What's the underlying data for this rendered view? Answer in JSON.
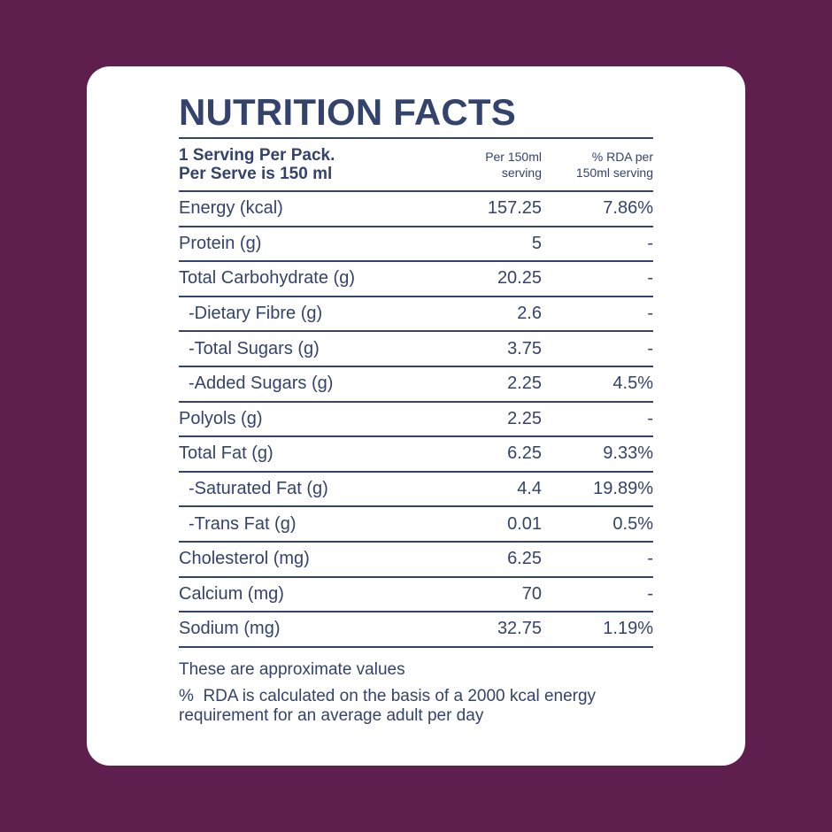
{
  "title": "NUTRITION FACTS",
  "header": {
    "serving_line1": "1 Serving Per Pack.",
    "serving_line2": "Per Serve is 150 ml",
    "per_col_line1": "Per 150ml",
    "per_col_line2": "serving",
    "rda_col_line1": "% RDA per",
    "rda_col_line2": "150ml serving"
  },
  "rows": [
    {
      "name": "Energy (kcal)",
      "value": "157.25",
      "rda": "7.86%",
      "sub": false
    },
    {
      "name": "Protein (g)",
      "value": "5",
      "rda": "-",
      "sub": false
    },
    {
      "name": "Total Carbohydrate (g)",
      "value": "20.25",
      "rda": "-",
      "sub": false
    },
    {
      "name": "-Dietary Fibre (g)",
      "value": "2.6",
      "rda": "-",
      "sub": true
    },
    {
      "name": "-Total Sugars (g)",
      "value": "3.75",
      "rda": "-",
      "sub": true
    },
    {
      "name": "-Added Sugars (g)",
      "value": "2.25",
      "rda": "4.5%",
      "sub": true
    },
    {
      "name": "Polyols (g)",
      "value": "2.25",
      "rda": "-",
      "sub": false
    },
    {
      "name": "Total Fat (g)",
      "value": "6.25",
      "rda": "9.33%",
      "sub": false
    },
    {
      "name": "-Saturated Fat (g)",
      "value": "4.4",
      "rda": "19.89%",
      "sub": true
    },
    {
      "name": "-Trans Fat (g)",
      "value": "0.01",
      "rda": "0.5%",
      "sub": true
    },
    {
      "name": "Cholesterol (mg)",
      "value": "6.25",
      "rda": "-",
      "sub": false
    },
    {
      "name": "Calcium (mg)",
      "value": "70",
      "rda": "-",
      "sub": false
    },
    {
      "name": "Sodium (mg)",
      "value": "32.75",
      "rda": "1.19%",
      "sub": false
    }
  ],
  "footnotes": {
    "approx": "These are approximate values",
    "rda_line1": "%  RDA is calculated on the basis of a 2000 kcal energy",
    "rda_line2": "requirement for an average adult per day"
  },
  "colors": {
    "background": "#5e1f4e",
    "card": "#ffffff",
    "text": "#34436b"
  }
}
